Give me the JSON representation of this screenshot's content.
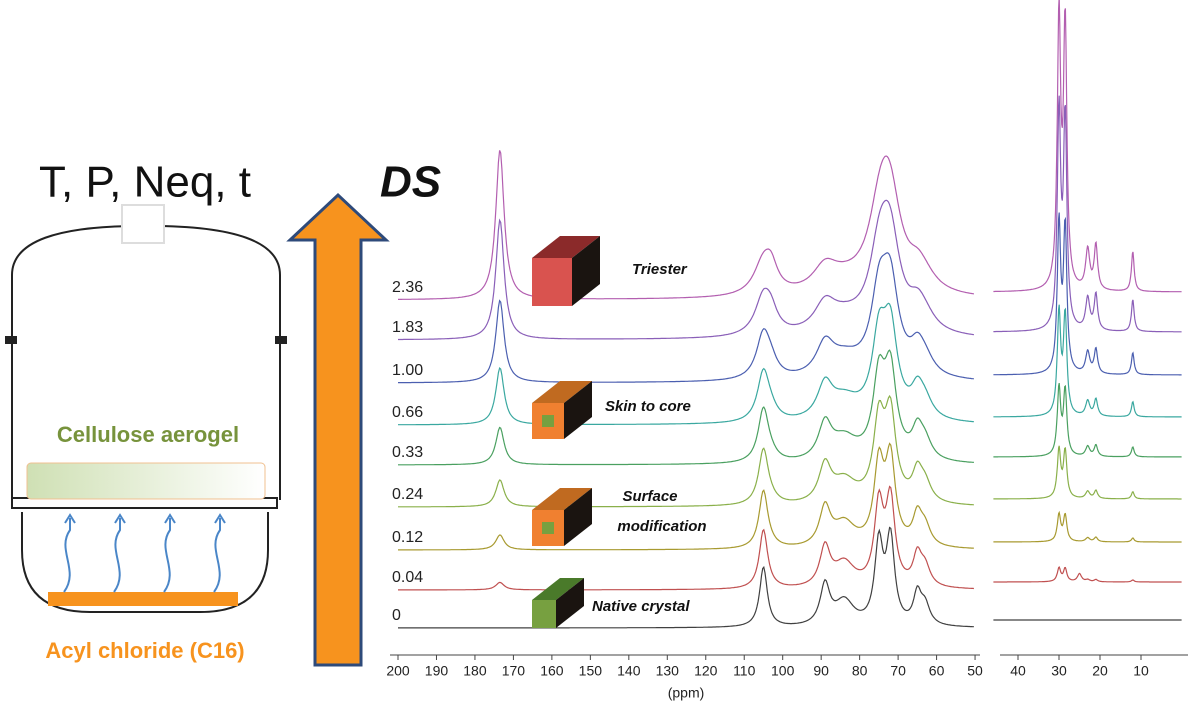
{
  "reactor": {
    "variables": "T, P, Neq, t",
    "aerogel": "Cellulose aerogel",
    "reagent": "Acyl chloride (C16)"
  },
  "arrow_label": "DS",
  "spectra": {
    "ds_labels": [
      "2.36",
      "1.83",
      "1.00",
      "0.66",
      "0.33",
      "0.24",
      "0.12",
      "0.04",
      "0"
    ]
  },
  "structures": {
    "triester": "Triester",
    "skin": "Skin to core",
    "surface": [
      "Surface",
      "modification"
    ],
    "native": "Native crystal"
  },
  "axis": {
    "ticks": [
      200,
      190,
      180,
      170,
      160,
      150,
      140,
      130,
      120,
      110,
      100,
      90,
      80,
      70,
      60,
      50
    ],
    "ticks2": [
      40,
      30,
      20,
      10
    ],
    "unit": "(ppm)"
  }
}
